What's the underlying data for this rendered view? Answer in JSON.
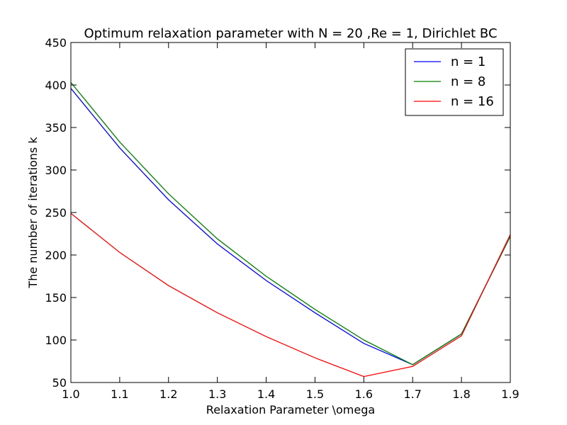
{
  "chart_data": {
    "type": "line",
    "title": "Optimum relaxation parameter with N = 20 ,Re = 1, Dirichlet BC",
    "xlabel": "Relaxation Parameter \\omega",
    "ylabel": "The number of iterations k",
    "xlim": [
      1.0,
      1.9
    ],
    "ylim": [
      50,
      450
    ],
    "xticks": [
      "1.0",
      "1.1",
      "1.2",
      "1.3",
      "1.4",
      "1.5",
      "1.6",
      "1.7",
      "1.8",
      "1.9"
    ],
    "yticks": [
      "50",
      "100",
      "150",
      "200",
      "250",
      "300",
      "350",
      "400",
      "450"
    ],
    "grid": false,
    "legend_position": "top-right",
    "x": [
      1.0,
      1.1,
      1.2,
      1.3,
      1.4,
      1.5,
      1.6,
      1.7,
      1.8,
      1.9
    ],
    "series": [
      {
        "name": "n = 1",
        "color": "#0000ff",
        "values": [
          396,
          326,
          265,
          213,
          170,
          132,
          96,
          71,
          107,
          222
        ]
      },
      {
        "name": "n = 8",
        "color": "#008000",
        "values": [
          403,
          333,
          272,
          219,
          175,
          136,
          100,
          71,
          107,
          222
        ]
      },
      {
        "name": "n = 16",
        "color": "#ff0000",
        "values": [
          249,
          203,
          164,
          132,
          104,
          79,
          57,
          69,
          105,
          224
        ]
      }
    ]
  }
}
